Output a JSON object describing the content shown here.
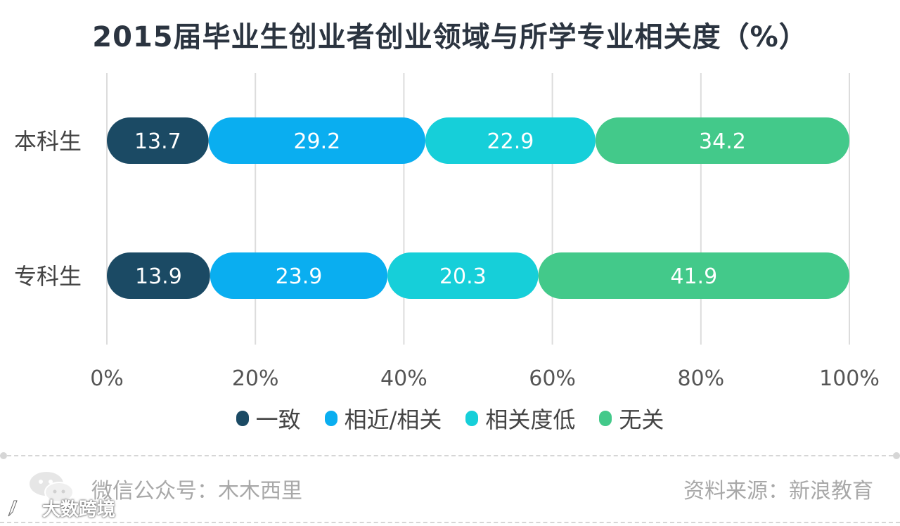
{
  "chart_data": {
    "type": "bar",
    "stacked": true,
    "orientation": "horizontal",
    "title": "2015届毕业生创业者创业领域与所学专业相关度（%）",
    "categories": [
      "本科生",
      "专科生"
    ],
    "series": [
      {
        "name": "一致",
        "values": [
          13.7,
          13.9
        ],
        "color": "#1b4a64"
      },
      {
        "name": "相近/相关",
        "values": [
          29.2,
          23.9
        ],
        "color": "#0aaef0"
      },
      {
        "name": "相关度低",
        "values": [
          22.9,
          20.3
        ],
        "color": "#16cfd9"
      },
      {
        "name": "无关",
        "values": [
          34.2,
          41.9
        ],
        "color": "#43c98a"
      }
    ],
    "x_ticks": [
      "0%",
      "20%",
      "40%",
      "60%",
      "80%",
      "100%"
    ],
    "xlim": [
      0,
      100
    ],
    "grid": true,
    "legend_position": "bottom"
  },
  "footer": {
    "left": "微信公众号：木木西里",
    "right": "资料来源：新浪教育"
  },
  "watermark": "大数跨境",
  "icons": {
    "wechat": "wechat-icon"
  }
}
